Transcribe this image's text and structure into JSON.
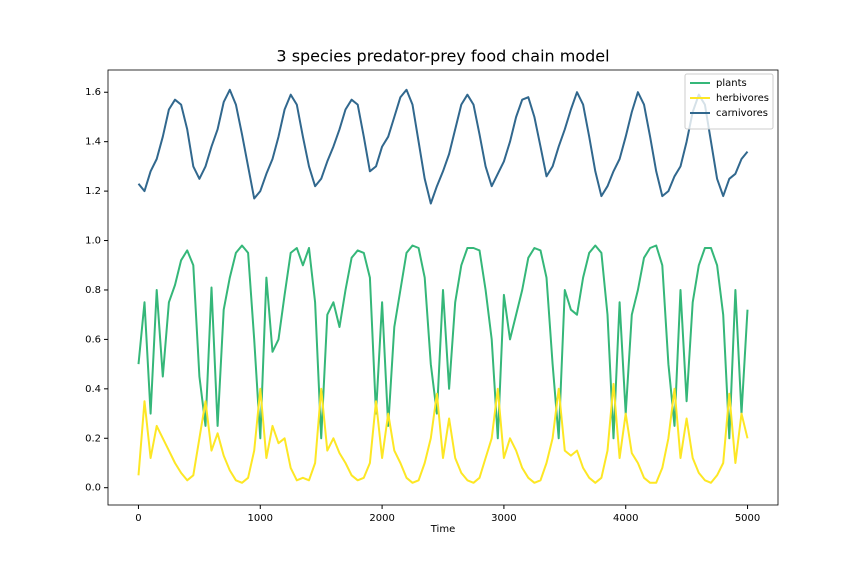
{
  "chart_data": {
    "type": "line",
    "title": "3 species predator-prey food chain model",
    "x_label": "Time",
    "x": [
      0,
      50,
      100,
      150,
      200,
      250,
      300,
      350,
      400,
      450,
      500,
      550,
      600,
      650,
      700,
      750,
      800,
      850,
      900,
      950,
      1000,
      1050,
      1100,
      1150,
      1200,
      1250,
      1300,
      1350,
      1400,
      1450,
      1500,
      1550,
      1600,
      1650,
      1700,
      1750,
      1800,
      1850,
      1900,
      1950,
      2000,
      2050,
      2100,
      2150,
      2200,
      2250,
      2300,
      2350,
      2400,
      2450,
      2500,
      2550,
      2600,
      2650,
      2700,
      2750,
      2800,
      2850,
      2900,
      2950,
      3000,
      3050,
      3100,
      3150,
      3200,
      3250,
      3300,
      3350,
      3400,
      3450,
      3500,
      3550,
      3600,
      3650,
      3700,
      3750,
      3800,
      3850,
      3900,
      3950,
      4000,
      4050,
      4100,
      4150,
      4200,
      4250,
      4300,
      4350,
      4400,
      4450,
      4500,
      4550,
      4600,
      4650,
      4700,
      4750,
      4800,
      4850,
      4900,
      4950,
      5000
    ],
    "series": [
      {
        "name": "plants",
        "color": "#35b779",
        "values": [
          0.5,
          0.75,
          0.3,
          0.8,
          0.45,
          0.75,
          0.82,
          0.92,
          0.96,
          0.9,
          0.45,
          0.25,
          0.81,
          0.25,
          0.72,
          0.85,
          0.95,
          0.98,
          0.95,
          0.6,
          0.2,
          0.85,
          0.55,
          0.6,
          0.78,
          0.95,
          0.97,
          0.9,
          0.97,
          0.75,
          0.2,
          0.7,
          0.75,
          0.65,
          0.8,
          0.93,
          0.96,
          0.95,
          0.85,
          0.3,
          0.75,
          0.25,
          0.65,
          0.8,
          0.95,
          0.98,
          0.97,
          0.85,
          0.5,
          0.3,
          0.8,
          0.4,
          0.75,
          0.9,
          0.97,
          0.97,
          0.96,
          0.8,
          0.6,
          0.2,
          0.78,
          0.6,
          0.7,
          0.8,
          0.93,
          0.97,
          0.96,
          0.85,
          0.5,
          0.2,
          0.8,
          0.72,
          0.7,
          0.85,
          0.95,
          0.98,
          0.95,
          0.7,
          0.2,
          0.75,
          0.3,
          0.7,
          0.8,
          0.93,
          0.97,
          0.98,
          0.9,
          0.5,
          0.25,
          0.8,
          0.35,
          0.75,
          0.9,
          0.97,
          0.97,
          0.9,
          0.7,
          0.2,
          0.8,
          0.3,
          0.72
        ]
      },
      {
        "name": "herbivores",
        "color": "#fde725",
        "values": [
          0.05,
          0.35,
          0.12,
          0.25,
          0.2,
          0.15,
          0.1,
          0.06,
          0.03,
          0.05,
          0.2,
          0.35,
          0.15,
          0.22,
          0.13,
          0.07,
          0.03,
          0.02,
          0.04,
          0.15,
          0.4,
          0.12,
          0.25,
          0.18,
          0.2,
          0.08,
          0.03,
          0.04,
          0.03,
          0.1,
          0.4,
          0.15,
          0.2,
          0.14,
          0.1,
          0.05,
          0.03,
          0.04,
          0.1,
          0.35,
          0.12,
          0.3,
          0.15,
          0.1,
          0.04,
          0.02,
          0.03,
          0.1,
          0.2,
          0.38,
          0.12,
          0.28,
          0.12,
          0.06,
          0.03,
          0.02,
          0.04,
          0.12,
          0.2,
          0.4,
          0.12,
          0.2,
          0.15,
          0.08,
          0.04,
          0.02,
          0.03,
          0.1,
          0.2,
          0.4,
          0.15,
          0.13,
          0.15,
          0.08,
          0.04,
          0.02,
          0.04,
          0.15,
          0.42,
          0.12,
          0.3,
          0.14,
          0.1,
          0.04,
          0.02,
          0.02,
          0.08,
          0.2,
          0.4,
          0.12,
          0.28,
          0.12,
          0.06,
          0.03,
          0.02,
          0.05,
          0.1,
          0.38,
          0.1,
          0.3,
          0.2
        ]
      },
      {
        "name": "carnivores",
        "color": "#31688e",
        "values": [
          1.23,
          1.2,
          1.28,
          1.33,
          1.42,
          1.53,
          1.57,
          1.55,
          1.45,
          1.3,
          1.25,
          1.3,
          1.38,
          1.45,
          1.56,
          1.61,
          1.55,
          1.43,
          1.3,
          1.17,
          1.2,
          1.27,
          1.33,
          1.42,
          1.53,
          1.59,
          1.55,
          1.42,
          1.3,
          1.22,
          1.25,
          1.32,
          1.38,
          1.45,
          1.53,
          1.57,
          1.55,
          1.42,
          1.28,
          1.3,
          1.38,
          1.42,
          1.5,
          1.58,
          1.61,
          1.55,
          1.4,
          1.25,
          1.15,
          1.22,
          1.28,
          1.35,
          1.45,
          1.55,
          1.59,
          1.55,
          1.43,
          1.3,
          1.22,
          1.27,
          1.32,
          1.4,
          1.5,
          1.57,
          1.58,
          1.5,
          1.38,
          1.26,
          1.3,
          1.38,
          1.45,
          1.53,
          1.6,
          1.55,
          1.42,
          1.28,
          1.18,
          1.22,
          1.28,
          1.33,
          1.42,
          1.52,
          1.6,
          1.55,
          1.42,
          1.28,
          1.18,
          1.2,
          1.26,
          1.3,
          1.4,
          1.52,
          1.59,
          1.55,
          1.4,
          1.25,
          1.18,
          1.25,
          1.27,
          1.33,
          1.36
        ]
      }
    ],
    "xlim": [
      -250,
      5250
    ],
    "xticks": [
      0,
      1000,
      2000,
      3000,
      4000,
      5000
    ],
    "ylim": [
      -0.07,
      1.69
    ],
    "yticks": [
      {
        "value": 0,
        "label": "0.0"
      },
      0.2,
      0.4,
      0.6,
      0.8,
      {
        "value": 1,
        "label": "1.0"
      },
      1.2,
      1.4,
      1.6
    ],
    "legend": "upper right"
  }
}
